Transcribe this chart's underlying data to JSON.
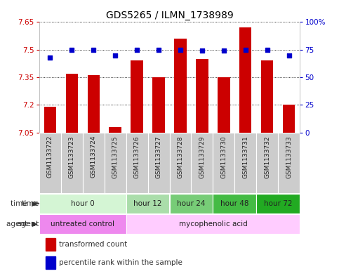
{
  "title": "GDS5265 / ILMN_1738989",
  "samples": [
    "GSM1133722",
    "GSM1133723",
    "GSM1133724",
    "GSM1133725",
    "GSM1133726",
    "GSM1133727",
    "GSM1133728",
    "GSM1133729",
    "GSM1133730",
    "GSM1133731",
    "GSM1133732",
    "GSM1133733"
  ],
  "transformed_counts": [
    7.19,
    7.37,
    7.36,
    7.08,
    7.44,
    7.35,
    7.56,
    7.45,
    7.35,
    7.62,
    7.44,
    7.2
  ],
  "percentile_ranks": [
    68,
    75,
    75,
    70,
    75,
    75,
    75,
    74,
    74,
    75,
    75,
    70
  ],
  "ylim_left": [
    7.05,
    7.65
  ],
  "ylim_right": [
    0,
    100
  ],
  "yticks_left": [
    7.05,
    7.2,
    7.35,
    7.5,
    7.65
  ],
  "yticks_right": [
    0,
    25,
    50,
    75,
    100
  ],
  "ytick_labels_left": [
    "7.05",
    "7.2",
    "7.35",
    "7.5",
    "7.65"
  ],
  "ytick_labels_right": [
    "0",
    "25",
    "50",
    "75",
    "100%"
  ],
  "bar_color": "#cc0000",
  "dot_color": "#0000cc",
  "bar_bottom": 7.05,
  "time_groups": [
    {
      "label": "hour 0",
      "start": 0,
      "end": 3,
      "color": "#d4f5d4"
    },
    {
      "label": "hour 12",
      "start": 4,
      "end": 5,
      "color": "#aaddaa"
    },
    {
      "label": "hour 24",
      "start": 6,
      "end": 7,
      "color": "#77cc77"
    },
    {
      "label": "hour 48",
      "start": 8,
      "end": 9,
      "color": "#44bb44"
    },
    {
      "label": "hour 72",
      "start": 10,
      "end": 11,
      "color": "#22aa22"
    }
  ],
  "agent_groups": [
    {
      "label": "untreated control",
      "start": 0,
      "end": 3,
      "color": "#ee88ee"
    },
    {
      "label": "mycophenolic acid",
      "start": 4,
      "end": 11,
      "color": "#ffccff"
    }
  ],
  "bg_color": "#ffffff",
  "sample_bg_color": "#cccccc",
  "title_fontsize": 10,
  "tick_fontsize": 7.5,
  "sample_fontsize": 6.5,
  "label_fontsize": 7.5
}
